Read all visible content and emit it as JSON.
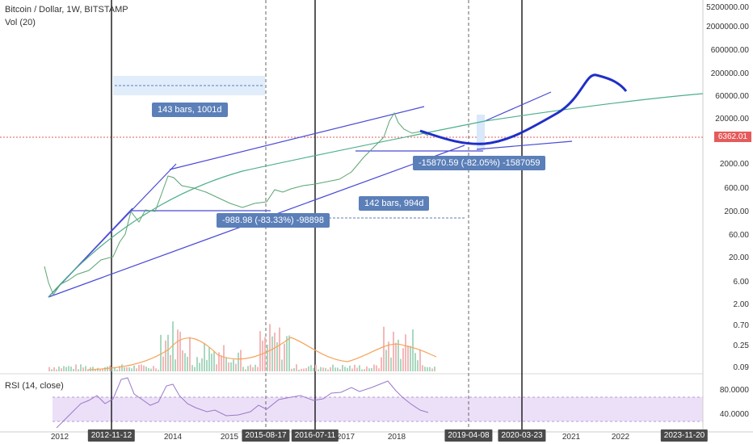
{
  "header": {
    "title": "Bitcoin / Dollar, 1W, BITSTAMP",
    "volume_label": "Vol (20)",
    "rsi_label": "RSI (14, close)"
  },
  "price_axis": [
    "5200000.00",
    "2000000.00",
    "600000.00",
    "200000.00",
    "60000.00",
    "20000.00",
    "2000.00",
    "600.00",
    "200.00",
    "60.00",
    "20.00",
    "6.00",
    "2.00",
    "0.70",
    "0.25",
    "0.09"
  ],
  "rsi_axis": [
    "80.0000",
    "40.0000"
  ],
  "current_price": "6362.01",
  "time_axis": [
    {
      "label": "2012",
      "highlight": false
    },
    {
      "label": "2012-11-12",
      "highlight": true
    },
    {
      "label": "2014",
      "highlight": false
    },
    {
      "label": "2015",
      "highlight": false
    },
    {
      "label": "2015-08-17",
      "highlight": true
    },
    {
      "label": "2016-07-11",
      "highlight": true
    },
    {
      "label": "2017",
      "highlight": false
    },
    {
      "label": "2018",
      "highlight": false
    },
    {
      "label": "2019-04-08",
      "highlight": true
    },
    {
      "label": "2020-03-23",
      "highlight": true
    },
    {
      "label": "2021",
      "highlight": false
    },
    {
      "label": "2022",
      "highlight": false
    },
    {
      "label": "2023-11-20",
      "highlight": true
    }
  ],
  "annotations": {
    "range1": "143 bars, 1001d",
    "range2": "142 bars, 994d",
    "drop1": "-988.98 (-83.33%) -98898",
    "drop2": "-15870.59 (-82.05%) -1587059"
  },
  "colors": {
    "trendline": "#4a4ad6",
    "curve": "#4caf8a",
    "forecast": "#1f2fc8",
    "badge": "#5b7fb8",
    "price_line": "#e55b5b",
    "rsi_band": "#e8d9f6"
  }
}
